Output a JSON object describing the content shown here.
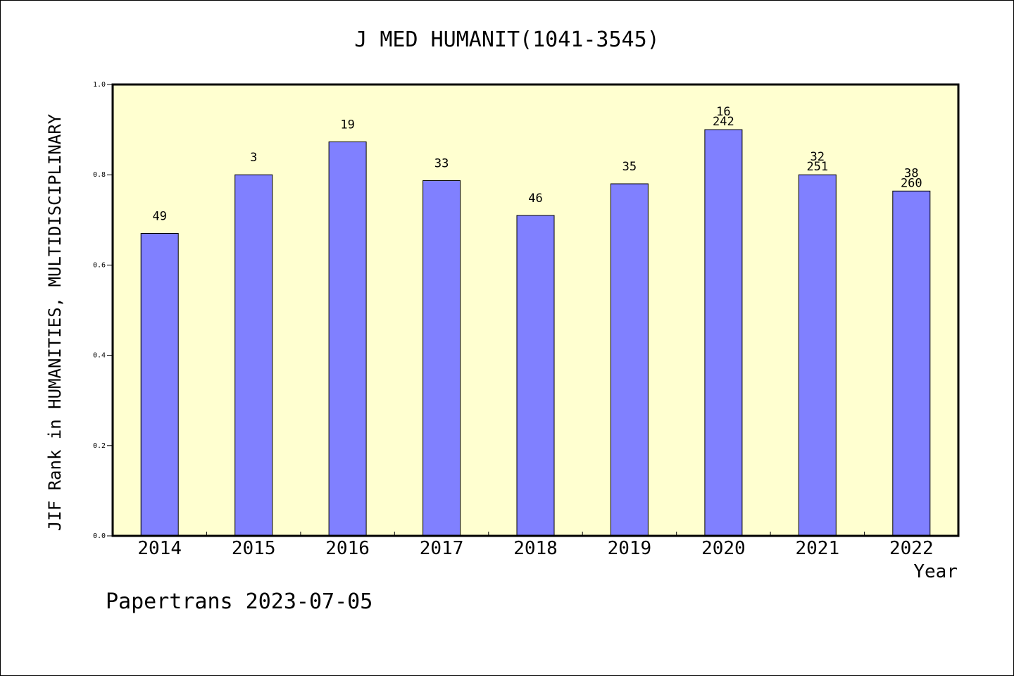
{
  "chart_data": {
    "type": "bar",
    "title": "J MED HUMANIT(1041-3545)",
    "xlabel": "Year",
    "ylabel": "JIF Rank in HUMANITIES, MULTIDISCIPLINARY",
    "ylim": [
      0.0,
      1.0
    ],
    "yticks": [
      "0.0",
      "0.2",
      "0.4",
      "0.6",
      "0.8",
      "1.0"
    ],
    "grid": false,
    "categories": [
      "2014",
      "2015",
      "2016",
      "2017",
      "2018",
      "2019",
      "2020",
      "2021",
      "2022"
    ],
    "values": [
      0.67,
      0.8,
      0.873,
      0.787,
      0.71,
      0.78,
      0.9,
      0.8,
      0.764
    ],
    "bar_labels": [
      [
        "49"
      ],
      [
        "3"
      ],
      [
        "19"
      ],
      [
        "33"
      ],
      [
        "46"
      ],
      [
        "35"
      ],
      [
        "16",
        "242"
      ],
      [
        "32",
        "251"
      ],
      [
        "38",
        "260"
      ]
    ],
    "colors": {
      "bar": "#8080ff",
      "plot_background": "#ffffd0",
      "axis": "#000000"
    }
  },
  "footer": "Papertrans 2023-07-05"
}
